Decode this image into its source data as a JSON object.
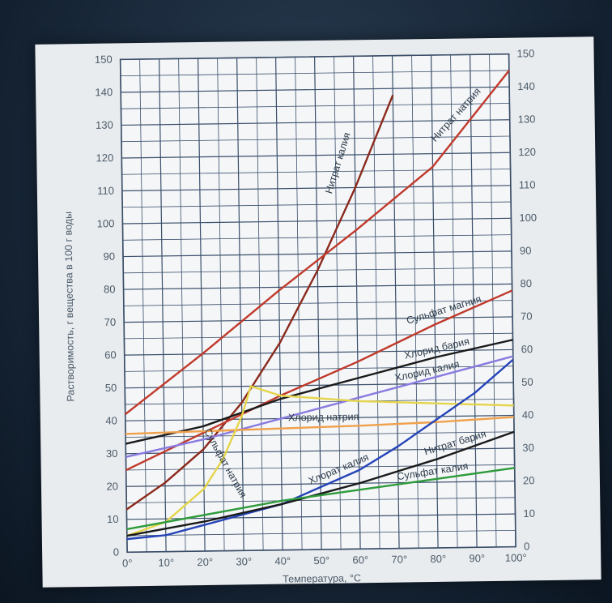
{
  "chart_data": {
    "type": "line",
    "xlabel": "Температура, °С",
    "ylabel": "Растворимость, г вещества в 100 г воды",
    "xlim": [
      0,
      100
    ],
    "ylim": [
      0,
      150
    ],
    "grid": true,
    "x_tick_labels": [
      "0°",
      "10°",
      "20°",
      "30°",
      "40°",
      "50°",
      "60°",
      "70°",
      "80°",
      "90°",
      "100°"
    ],
    "y_tick_labels_left": [
      "0",
      "10",
      "20",
      "30",
      "40",
      "50",
      "60",
      "70",
      "80",
      "90",
      "100",
      "110",
      "120",
      "130",
      "140",
      "150"
    ],
    "y_tick_labels_right": [
      "0",
      "10",
      "20",
      "30",
      "40",
      "50",
      "60",
      "70",
      "80",
      "90",
      "100",
      "110",
      "120",
      "130",
      "140",
      "150"
    ],
    "series": [
      {
        "name": "Нитрат калия",
        "color": "#8b2a1c",
        "x": [
          0,
          10,
          20,
          30,
          40,
          50,
          60,
          70
        ],
        "y": [
          13,
          21,
          31,
          45,
          63,
          85,
          110,
          138
        ]
      },
      {
        "name": "Нитрат натрия",
        "color": "#c0392b",
        "x": [
          0,
          20,
          40,
          60,
          80,
          100
        ],
        "y": [
          42,
          60,
          79,
          97,
          116,
          145
        ]
      },
      {
        "name": "Сульфат магния",
        "color": "#c0392b",
        "x": [
          0,
          20,
          40,
          60,
          80,
          100
        ],
        "y": [
          25,
          36,
          47,
          57,
          68,
          78
        ]
      },
      {
        "name": "Хлорид бария",
        "color": "#1a1a1a",
        "x": [
          0,
          20,
          40,
          60,
          80,
          100
        ],
        "y": [
          33,
          38,
          46,
          52,
          58,
          63
        ]
      },
      {
        "name": "Хлорид калия",
        "color": "#8a7be0",
        "x": [
          0,
          20,
          40,
          60,
          80,
          100
        ],
        "y": [
          29,
          34,
          40,
          46,
          52,
          58
        ]
      },
      {
        "name": "Хлорид натрия",
        "color": "#f0a04b",
        "x": [
          0,
          20,
          40,
          60,
          80,
          100
        ],
        "y": [
          36,
          36.5,
          37,
          37.5,
          38.3,
          39.5
        ]
      },
      {
        "name": "Сульфат натрия",
        "color": "#e5d54a",
        "x": [
          0,
          10,
          20,
          25,
          30,
          32.4,
          40,
          60,
          80,
          100
        ],
        "y": [
          5,
          9,
          19,
          28,
          41,
          50,
          47,
          45,
          44,
          43
        ]
      },
      {
        "name": "Хлорат калия",
        "color": "#2544b8",
        "x": [
          0,
          10,
          20,
          30,
          40,
          50,
          60,
          70,
          80,
          90,
          100
        ],
        "y": [
          4,
          5,
          8,
          11,
          14,
          19,
          24,
          31,
          39,
          47,
          57
        ]
      },
      {
        "name": "Нитрат бария",
        "color": "#1a1a1a",
        "x": [
          0,
          20,
          40,
          60,
          80,
          100
        ],
        "y": [
          5,
          9,
          14,
          20,
          27,
          35
        ]
      },
      {
        "name": "Сульфат калия",
        "color": "#2e9b3a",
        "x": [
          0,
          20,
          40,
          60,
          80,
          100
        ],
        "y": [
          7,
          11,
          15,
          18,
          21,
          24
        ]
      }
    ]
  }
}
